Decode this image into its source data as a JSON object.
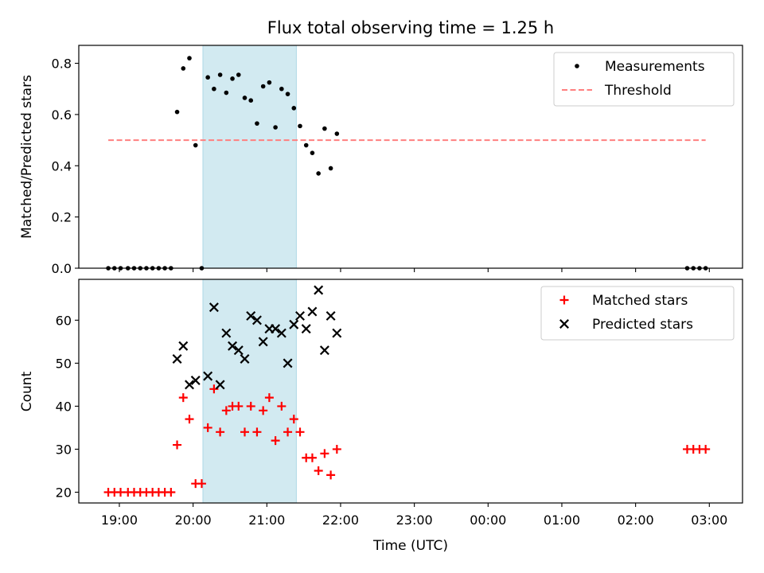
{
  "chart_data": [
    {
      "type": "scatter",
      "title": "Flux total observing time = 1.25 h",
      "xlabel": "",
      "ylabel": "Matched/Predicted stars",
      "xlim": [
        "18:27",
        "03:27"
      ],
      "ylim": [
        0,
        0.87
      ],
      "yticks": [
        0.0,
        0.2,
        0.4,
        0.6,
        0.8
      ],
      "ytick_labels": [
        "0.0",
        "0.2",
        "0.4",
        "0.6",
        "0.8"
      ],
      "shaded_x_range": [
        "20:08",
        "21:24"
      ],
      "shade_color": "#add8e6",
      "legend_position": "top-right",
      "series": [
        {
          "name": "Measurements",
          "marker": "dot",
          "color": "#000000",
          "points": [
            [
              "18:51",
              0.0
            ],
            [
              "18:56",
              0.0
            ],
            [
              "19:01",
              0.0
            ],
            [
              "19:07",
              0.0
            ],
            [
              "19:12",
              0.0
            ],
            [
              "19:17",
              0.0
            ],
            [
              "19:22",
              0.0
            ],
            [
              "19:27",
              0.0
            ],
            [
              "19:32",
              0.0
            ],
            [
              "19:37",
              0.0
            ],
            [
              "19:42",
              0.0
            ],
            [
              "19:47",
              0.61
            ],
            [
              "19:52",
              0.78
            ],
            [
              "19:57",
              0.82
            ],
            [
              "20:02",
              0.48
            ],
            [
              "20:07",
              0.0
            ],
            [
              "20:12",
              0.745
            ],
            [
              "20:17",
              0.7
            ],
            [
              "20:22",
              0.755
            ],
            [
              "20:27",
              0.685
            ],
            [
              "20:32",
              0.74
            ],
            [
              "20:37",
              0.755
            ],
            [
              "20:42",
              0.665
            ],
            [
              "20:47",
              0.655
            ],
            [
              "20:52",
              0.565
            ],
            [
              "20:57",
              0.71
            ],
            [
              "21:02",
              0.725
            ],
            [
              "21:07",
              0.55
            ],
            [
              "21:12",
              0.7
            ],
            [
              "21:17",
              0.68
            ],
            [
              "21:22",
              0.625
            ],
            [
              "21:27",
              0.555
            ],
            [
              "21:32",
              0.48
            ],
            [
              "21:37",
              0.45
            ],
            [
              "21:42",
              0.37
            ],
            [
              "21:47",
              0.545
            ],
            [
              "21:52",
              0.39
            ],
            [
              "21:57",
              0.525
            ],
            [
              "02:42",
              0.0
            ],
            [
              "02:47",
              0.0
            ],
            [
              "02:52",
              0.0
            ],
            [
              "02:57",
              0.0
            ]
          ]
        },
        {
          "name": "Threshold",
          "marker": "dashed-line",
          "color": "#ff7f7f",
          "points": [
            [
              "18:51",
              0.5
            ],
            [
              "02:57",
              0.5
            ]
          ]
        }
      ]
    },
    {
      "type": "scatter",
      "title": "",
      "xlabel": "Time (UTC)",
      "ylabel": "Count",
      "xlim": [
        "18:27",
        "03:27"
      ],
      "ylim": [
        17.5,
        69.5
      ],
      "yticks": [
        20,
        30,
        40,
        50,
        60
      ],
      "ytick_labels": [
        "20",
        "30",
        "40",
        "50",
        "60"
      ],
      "xticks": [
        "19:00",
        "20:00",
        "21:00",
        "22:00",
        "23:00",
        "00:00",
        "01:00",
        "02:00",
        "03:00"
      ],
      "shaded_x_range": [
        "20:08",
        "21:24"
      ],
      "shade_color": "#add8e6",
      "legend_position": "top-right",
      "series": [
        {
          "name": "Matched stars",
          "marker": "plus",
          "color": "#ff0000",
          "points": [
            [
              "18:51",
              20
            ],
            [
              "18:56",
              20
            ],
            [
              "19:01",
              20
            ],
            [
              "19:07",
              20
            ],
            [
              "19:12",
              20
            ],
            [
              "19:17",
              20
            ],
            [
              "19:22",
              20
            ],
            [
              "19:27",
              20
            ],
            [
              "19:32",
              20
            ],
            [
              "19:37",
              20
            ],
            [
              "19:42",
              20
            ],
            [
              "19:47",
              31
            ],
            [
              "19:52",
              42
            ],
            [
              "19:57",
              37
            ],
            [
              "20:02",
              22
            ],
            [
              "20:07",
              22
            ],
            [
              "20:12",
              35
            ],
            [
              "20:17",
              44
            ],
            [
              "20:22",
              34
            ],
            [
              "20:27",
              39
            ],
            [
              "20:32",
              40
            ],
            [
              "20:37",
              40
            ],
            [
              "20:42",
              34
            ],
            [
              "20:47",
              40
            ],
            [
              "20:52",
              34
            ],
            [
              "20:57",
              39
            ],
            [
              "21:02",
              42
            ],
            [
              "21:07",
              32
            ],
            [
              "21:12",
              40
            ],
            [
              "21:17",
              34
            ],
            [
              "21:22",
              37
            ],
            [
              "21:27",
              34
            ],
            [
              "21:32",
              28
            ],
            [
              "21:37",
              28
            ],
            [
              "21:42",
              25
            ],
            [
              "21:47",
              29
            ],
            [
              "21:52",
              24
            ],
            [
              "21:57",
              30
            ],
            [
              "02:42",
              30
            ],
            [
              "02:47",
              30
            ],
            [
              "02:52",
              30
            ],
            [
              "02:57",
              30
            ]
          ]
        },
        {
          "name": "Predicted stars",
          "marker": "x",
          "color": "#000000",
          "points": [
            [
              "19:47",
              51
            ],
            [
              "19:52",
              54
            ],
            [
              "19:57",
              45
            ],
            [
              "20:02",
              46
            ],
            [
              "20:12",
              47
            ],
            [
              "20:17",
              63
            ],
            [
              "20:22",
              45
            ],
            [
              "20:27",
              57
            ],
            [
              "20:32",
              54
            ],
            [
              "20:37",
              53
            ],
            [
              "20:42",
              51
            ],
            [
              "20:47",
              61
            ],
            [
              "20:52",
              60
            ],
            [
              "20:57",
              55
            ],
            [
              "21:02",
              58
            ],
            [
              "21:07",
              58
            ],
            [
              "21:12",
              57
            ],
            [
              "21:17",
              50
            ],
            [
              "21:22",
              59
            ],
            [
              "21:27",
              61
            ],
            [
              "21:32",
              58
            ],
            [
              "21:37",
              62
            ],
            [
              "21:42",
              67
            ],
            [
              "21:47",
              53
            ],
            [
              "21:52",
              61
            ],
            [
              "21:57",
              57
            ]
          ]
        }
      ]
    }
  ]
}
